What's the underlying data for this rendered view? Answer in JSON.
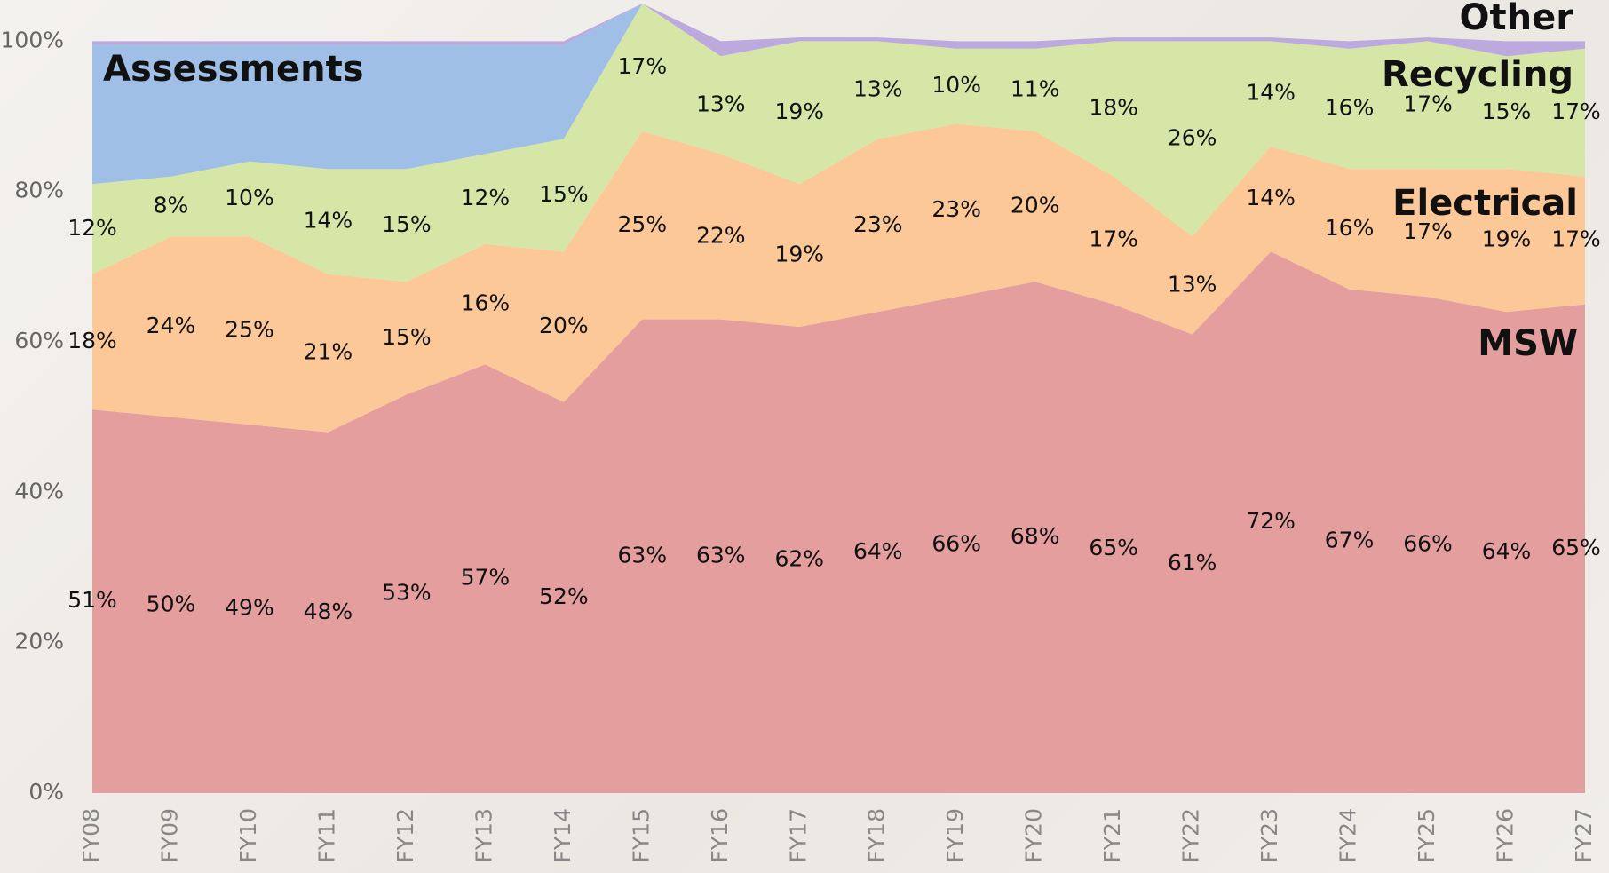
{
  "chart_data": {
    "type": "stacked_area",
    "categories": [
      "FY08",
      "FY09",
      "FY10",
      "FY11",
      "FY12",
      "FY13",
      "FY14",
      "FY15",
      "FY16",
      "FY17",
      "FY18",
      "FY19",
      "FY20",
      "FY21",
      "FY22",
      "FY23",
      "FY24",
      "FY25",
      "FY26",
      "FY27"
    ],
    "series": [
      {
        "name": "MSW",
        "color": "#e49e9e",
        "values": [
          51,
          50,
          49,
          48,
          53,
          57,
          52,
          63,
          63,
          62,
          64,
          66,
          68,
          65,
          61,
          72,
          67,
          66,
          64,
          65
        ],
        "value_labels": [
          "51%",
          "50%",
          "49%",
          "48%",
          "53%",
          "57%",
          "52%",
          "63%",
          "63%",
          "62%",
          "64%",
          "66%",
          "68%",
          "65%",
          "61%",
          "72%",
          "67%",
          "66%",
          "64%",
          "65%"
        ]
      },
      {
        "name": "Electrical",
        "color": "#fdc898",
        "values": [
          18,
          24,
          25,
          21,
          15,
          16,
          20,
          25,
          22,
          19,
          23,
          23,
          20,
          17,
          13,
          14,
          16,
          17,
          19,
          17
        ],
        "value_labels": [
          "18%",
          "24%",
          "25%",
          "21%",
          "15%",
          "16%",
          "20%",
          "25%",
          "22%",
          "19%",
          "23%",
          "23%",
          "20%",
          "17%",
          "13%",
          "14%",
          "16%",
          "17%",
          "19%",
          "17%"
        ]
      },
      {
        "name": "Recycling",
        "color": "#d6e6a6",
        "values": [
          12,
          8,
          10,
          14,
          15,
          12,
          15,
          17,
          13,
          19,
          13,
          10,
          11,
          18,
          26,
          14,
          16,
          17,
          15,
          17
        ],
        "value_labels": [
          "12%",
          "8%",
          "10%",
          "14%",
          "15%",
          "12%",
          "15%",
          "17%",
          "13%",
          "19%",
          "13%",
          "10%",
          "11%",
          "18%",
          "26%",
          "14%",
          "16%",
          "17%",
          "15%",
          "17%"
        ]
      },
      {
        "name": "Assessments",
        "color": "#a0bfe6",
        "values": [
          18.5,
          17.5,
          15.5,
          16.5,
          16.5,
          14.5,
          12.5,
          0,
          0,
          0,
          0,
          0,
          0,
          0,
          0,
          0,
          0,
          0,
          0,
          0
        ]
      },
      {
        "name": "Other",
        "color": "#bcaadf",
        "values": [
          0.5,
          0.5,
          0.5,
          0.5,
          0.5,
          0.5,
          0.5,
          0,
          2,
          0.5,
          0.5,
          1,
          1,
          0.5,
          0.5,
          0.5,
          1,
          0.5,
          2,
          1
        ]
      }
    ],
    "ylim": [
      0,
      105
    ],
    "yticks": [
      {
        "value": 0,
        "label": "0%"
      },
      {
        "value": 20,
        "label": "20%"
      },
      {
        "value": 40,
        "label": "40%"
      },
      {
        "value": 60,
        "label": "60%"
      },
      {
        "value": 80,
        "label": "80%"
      },
      {
        "value": 100,
        "label": "100%"
      }
    ]
  }
}
